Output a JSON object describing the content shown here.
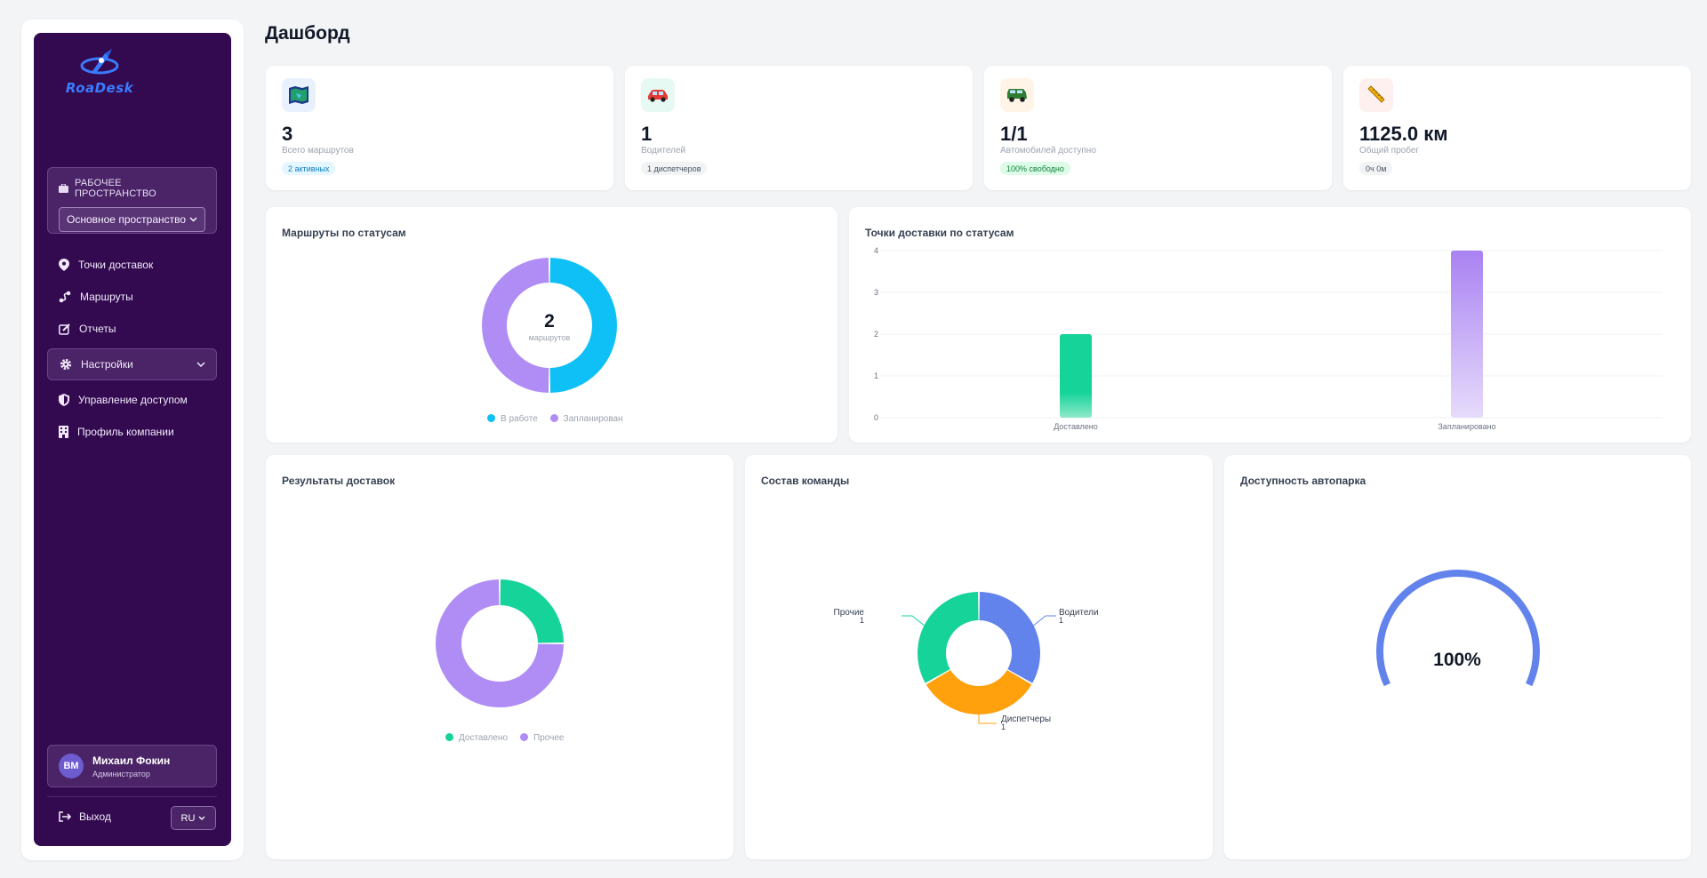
{
  "app": {
    "logo_text": "RoaDesk"
  },
  "sidebar": {
    "workspace_label": "РАБОЧЕЕ ПРОСТРАНСТВО",
    "workspace_value": "Основное пространство",
    "items": [
      {
        "label": "Точки доставок",
        "icon": "map-pin-icon"
      },
      {
        "label": "Маршруты",
        "icon": "route-icon"
      },
      {
        "label": "Отчеты",
        "icon": "edit-report-icon"
      },
      {
        "label": "Настройки",
        "icon": "gear-icon"
      },
      {
        "label": "Управление доступом",
        "icon": "shield-icon"
      },
      {
        "label": "Профиль компании",
        "icon": "building-icon"
      }
    ],
    "user": {
      "initials": "ВМ",
      "name": "Михаил Фокин",
      "role": "Администратор"
    },
    "logout_label": "Выход",
    "lang": "RU"
  },
  "header": {
    "title": "Дашборд"
  },
  "stats": [
    {
      "value": "3",
      "label": "Всего маршрутов",
      "badge": "2 активных",
      "icon": "map-icon"
    },
    {
      "value": "1",
      "label": "Водителей",
      "badge": "1 диспетчеров",
      "icon": "car-icon"
    },
    {
      "value": "1/1",
      "label": "Автомобилей доступно",
      "badge": "100% свободно",
      "icon": "suv-icon"
    },
    {
      "value": "1125.0 км",
      "label": "Общий пробег",
      "badge": "0ч 0м",
      "icon": "ruler-icon"
    }
  ],
  "charts": {
    "routes_status": {
      "title": "Маршруты по статусам",
      "center_value": "2",
      "center_label": "маршрутов"
    },
    "points_status": {
      "title": "Точки доставки по статусам"
    },
    "delivery_results": {
      "title": "Результаты доставок"
    },
    "team": {
      "title": "Состав команды"
    },
    "fleet": {
      "title": "Доступность автопарка",
      "value_label": "100%"
    }
  },
  "colors": {
    "cyan": "#0ec0f5",
    "purple": "#b08cf5",
    "green": "#16d39a",
    "blue": "#6283ec",
    "orange": "#ffa00d",
    "sidebar": "#330a4f"
  },
  "chart_data": [
    {
      "type": "pie",
      "title": "Маршруты по статусам",
      "categories": [
        "В работе",
        "Запланирован"
      ],
      "values": [
        1,
        1
      ],
      "legend": "bottom"
    },
    {
      "type": "bar",
      "title": "Точки доставки по статусам",
      "categories": [
        "Доставлено",
        "Запланировано"
      ],
      "values": [
        2,
        4
      ],
      "ylim": [
        0,
        4
      ],
      "yticks": [
        "0",
        "1",
        "2",
        "3",
        "4"
      ],
      "grid": true
    },
    {
      "type": "pie",
      "title": "Результаты доставок",
      "categories": [
        "Доставлено",
        "Прочее"
      ],
      "values": [
        1,
        3
      ],
      "legend": "bottom"
    },
    {
      "type": "pie",
      "title": "Состав команды",
      "categories": [
        "Водители",
        "Диспетчеры",
        "Прочие"
      ],
      "values": [
        1,
        1,
        1
      ],
      "data_labels": [
        "1",
        "1",
        "1"
      ]
    },
    {
      "type": "gauge",
      "title": "Доступность автопарка",
      "value": 100,
      "label": "100%"
    }
  ]
}
